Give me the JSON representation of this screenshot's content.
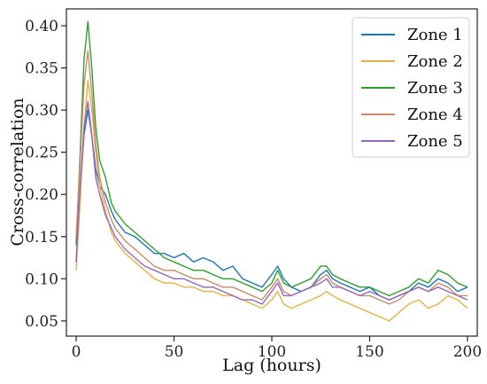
{
  "chart_data": {
    "type": "line",
    "title": "",
    "xlabel": "Lag (hours)",
    "ylabel": "Cross-correlation",
    "xlim": [
      -5,
      205
    ],
    "ylim": [
      0.032,
      0.42
    ],
    "xticks": [
      0,
      50,
      100,
      150,
      200
    ],
    "yticks": [
      0.05,
      0.1,
      0.15,
      0.2,
      0.25,
      0.3,
      0.35,
      0.4
    ],
    "ytick_labels": [
      "0.05",
      "0.10",
      "0.15",
      "0.20",
      "0.25",
      "0.30",
      "0.35",
      "0.40"
    ],
    "grid": false,
    "legend_position": "top-right",
    "series": [
      {
        "name": "Zone 1",
        "color": "#1f77b4",
        "x": [
          0,
          2,
          4,
          6,
          8,
          10,
          12,
          15,
          18,
          20,
          25,
          30,
          35,
          40,
          45,
          50,
          55,
          60,
          65,
          70,
          75,
          80,
          85,
          90,
          95,
          100,
          103,
          106,
          110,
          115,
          120,
          125,
          128,
          131,
          135,
          140,
          145,
          150,
          155,
          160,
          165,
          170,
          175,
          180,
          185,
          190,
          195,
          200
        ],
        "y": [
          0.12,
          0.2,
          0.27,
          0.3,
          0.27,
          0.23,
          0.21,
          0.2,
          0.18,
          0.17,
          0.155,
          0.15,
          0.14,
          0.13,
          0.13,
          0.125,
          0.13,
          0.12,
          0.125,
          0.12,
          0.11,
          0.115,
          0.1,
          0.095,
          0.09,
          0.105,
          0.115,
          0.1,
          0.09,
          0.085,
          0.09,
          0.105,
          0.11,
          0.1,
          0.095,
          0.09,
          0.085,
          0.09,
          0.08,
          0.075,
          0.08,
          0.085,
          0.095,
          0.09,
          0.1,
          0.095,
          0.085,
          0.09
        ]
      },
      {
        "name": "Zone 2",
        "color": "#e8b040",
        "x": [
          0,
          2,
          4,
          6,
          8,
          10,
          12,
          15,
          18,
          20,
          25,
          30,
          35,
          40,
          45,
          50,
          55,
          60,
          65,
          70,
          75,
          80,
          85,
          90,
          95,
          100,
          103,
          106,
          110,
          115,
          120,
          125,
          128,
          131,
          135,
          140,
          145,
          150,
          155,
          160,
          165,
          170,
          175,
          180,
          185,
          190,
          195,
          200
        ],
        "y": [
          0.11,
          0.19,
          0.28,
          0.335,
          0.3,
          0.25,
          0.21,
          0.18,
          0.155,
          0.145,
          0.13,
          0.12,
          0.11,
          0.1,
          0.095,
          0.095,
          0.09,
          0.09,
          0.085,
          0.085,
          0.08,
          0.08,
          0.075,
          0.07,
          0.065,
          0.075,
          0.085,
          0.07,
          0.065,
          0.07,
          0.075,
          0.08,
          0.085,
          0.08,
          0.075,
          0.07,
          0.065,
          0.06,
          0.055,
          0.05,
          0.06,
          0.07,
          0.075,
          0.065,
          0.07,
          0.08,
          0.075,
          0.065
        ]
      },
      {
        "name": "Zone 3",
        "color": "#2ca02c",
        "x": [
          0,
          2,
          4,
          6,
          8,
          10,
          12,
          15,
          18,
          20,
          25,
          30,
          35,
          40,
          45,
          50,
          55,
          60,
          65,
          70,
          75,
          80,
          85,
          90,
          95,
          100,
          103,
          106,
          110,
          115,
          120,
          125,
          128,
          131,
          135,
          140,
          145,
          150,
          155,
          160,
          165,
          170,
          175,
          180,
          185,
          190,
          195,
          200
        ],
        "y": [
          0.14,
          0.25,
          0.36,
          0.405,
          0.35,
          0.28,
          0.24,
          0.22,
          0.19,
          0.18,
          0.165,
          0.155,
          0.145,
          0.135,
          0.125,
          0.12,
          0.115,
          0.11,
          0.11,
          0.105,
          0.1,
          0.1,
          0.095,
          0.09,
          0.085,
          0.095,
          0.11,
          0.095,
          0.09,
          0.095,
          0.1,
          0.115,
          0.115,
          0.105,
          0.1,
          0.095,
          0.09,
          0.09,
          0.085,
          0.08,
          0.085,
          0.09,
          0.1,
          0.095,
          0.11,
          0.105,
          0.095,
          0.09
        ]
      },
      {
        "name": "Zone 4",
        "color": "#c98a6a",
        "x": [
          0,
          2,
          4,
          6,
          8,
          10,
          12,
          15,
          18,
          20,
          25,
          30,
          35,
          40,
          45,
          50,
          55,
          60,
          65,
          70,
          75,
          80,
          85,
          90,
          95,
          100,
          103,
          106,
          110,
          115,
          120,
          125,
          128,
          131,
          135,
          140,
          145,
          150,
          155,
          160,
          165,
          170,
          175,
          180,
          185,
          190,
          195,
          200
        ],
        "y": [
          0.15,
          0.24,
          0.33,
          0.37,
          0.32,
          0.26,
          0.22,
          0.19,
          0.17,
          0.16,
          0.145,
          0.135,
          0.125,
          0.115,
          0.11,
          0.11,
          0.105,
          0.1,
          0.1,
          0.095,
          0.09,
          0.09,
          0.085,
          0.08,
          0.075,
          0.09,
          0.1,
          0.085,
          0.08,
          0.085,
          0.09,
          0.1,
          0.105,
          0.095,
          0.09,
          0.085,
          0.08,
          0.08,
          0.075,
          0.07,
          0.075,
          0.085,
          0.09,
          0.085,
          0.095,
          0.09,
          0.08,
          0.08
        ]
      },
      {
        "name": "Zone 5",
        "color": "#9467bd",
        "x": [
          0,
          2,
          4,
          6,
          8,
          10,
          12,
          15,
          18,
          20,
          25,
          30,
          35,
          40,
          45,
          50,
          55,
          60,
          65,
          70,
          75,
          80,
          85,
          90,
          95,
          100,
          103,
          106,
          110,
          115,
          120,
          125,
          128,
          131,
          135,
          140,
          145,
          150,
          155,
          160,
          165,
          170,
          175,
          180,
          185,
          190,
          195,
          200
        ],
        "y": [
          0.12,
          0.21,
          0.28,
          0.31,
          0.27,
          0.22,
          0.2,
          0.175,
          0.16,
          0.15,
          0.135,
          0.125,
          0.115,
          0.11,
          0.105,
          0.1,
          0.1,
          0.095,
          0.09,
          0.09,
          0.085,
          0.08,
          0.075,
          0.075,
          0.07,
          0.085,
          0.095,
          0.08,
          0.08,
          0.085,
          0.09,
          0.095,
          0.1,
          0.09,
          0.09,
          0.085,
          0.08,
          0.085,
          0.08,
          0.075,
          0.08,
          0.085,
          0.09,
          0.085,
          0.09,
          0.085,
          0.08,
          0.075
        ]
      }
    ]
  }
}
